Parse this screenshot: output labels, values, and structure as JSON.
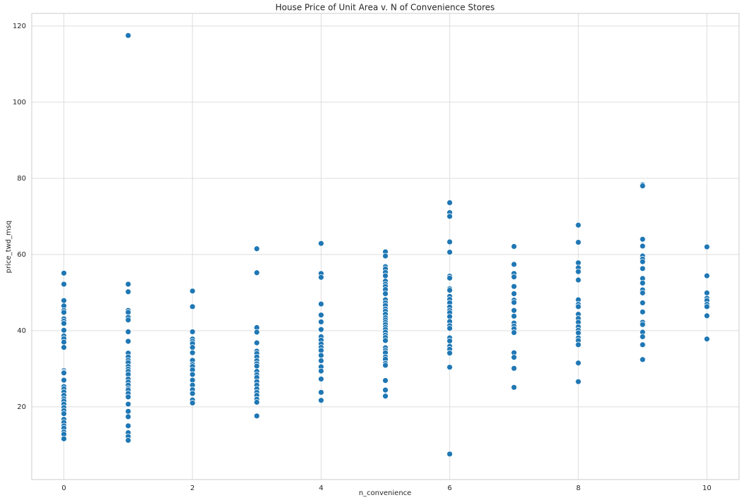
{
  "chart_data": {
    "type": "scatter",
    "title": "House Price of Unit Area v. N of Convenience Stores",
    "x_label": "n_convenience",
    "y_label": "price_twd_msq",
    "color": "#1f77b4",
    "grid": true,
    "xlim": [
      -0.5,
      10.5
    ],
    "ylim": [
      0.9,
      123.3
    ],
    "xticks": [
      0,
      2,
      4,
      6,
      8,
      10
    ],
    "yticks": [
      20,
      40,
      60,
      80,
      100,
      120
    ],
    "x": [
      0,
      0,
      0,
      0,
      0,
      0,
      0,
      0,
      0,
      0,
      0,
      0,
      0,
      0,
      0,
      0,
      0,
      0,
      0,
      0,
      0,
      0,
      0,
      0,
      0,
      0,
      0,
      0,
      0,
      0,
      0,
      0,
      0,
      0,
      0,
      1,
      1,
      1,
      1,
      1,
      1,
      1,
      1,
      1,
      1,
      1,
      1,
      1,
      1,
      1,
      1,
      1,
      1,
      1,
      1,
      1,
      1,
      1,
      1,
      1,
      1,
      1,
      1,
      1,
      1,
      1,
      2,
      2,
      2,
      2,
      2,
      2,
      2,
      2,
      2,
      2,
      2,
      2,
      2,
      2,
      2,
      2,
      2,
      2,
      2,
      3,
      3,
      3,
      3,
      3,
      3,
      3,
      3,
      3,
      3,
      3,
      3,
      3,
      3,
      3,
      3,
      3,
      3,
      3,
      3,
      3,
      3,
      4,
      4,
      4,
      4,
      4,
      4,
      4,
      4,
      4,
      4,
      4,
      4,
      4,
      4,
      4,
      4,
      4,
      4,
      4,
      5,
      5,
      5,
      5,
      5,
      5,
      5,
      5,
      5,
      5,
      5,
      5,
      5,
      5,
      5,
      5,
      5,
      5,
      5,
      5,
      5,
      5,
      5,
      5,
      5,
      5,
      5,
      5,
      5,
      5,
      5,
      5,
      5,
      5,
      5,
      5,
      5,
      6,
      6,
      6,
      6,
      6,
      6,
      6,
      6,
      6,
      6,
      6,
      6,
      6,
      6,
      6,
      6,
      6,
      6,
      6,
      6,
      6,
      6,
      6,
      6,
      6,
      6,
      7,
      7,
      7,
      7,
      7,
      7,
      7,
      7,
      7,
      7,
      7,
      7,
      7,
      7,
      7,
      7,
      7,
      7,
      8,
      8,
      8,
      8,
      8,
      8,
      8,
      8,
      8,
      8,
      8,
      8,
      8,
      8,
      8,
      8,
      8,
      8,
      8,
      8,
      9,
      9,
      9,
      9,
      9,
      9,
      9,
      9,
      9,
      9,
      9,
      9,
      9,
      9,
      9,
      9,
      9,
      9,
      9,
      9,
      10,
      10,
      10,
      10,
      10,
      10,
      10,
      10,
      10
    ],
    "values": [
      55.1,
      52.2,
      47.9,
      46.5,
      45.3,
      44.8,
      43.1,
      42.5,
      41.9,
      40.1,
      38.6,
      37.9,
      37.0,
      35.6,
      29.5,
      29.1,
      28.9,
      27.0,
      25.3,
      24.7,
      23.9,
      23.0,
      22.1,
      21.5,
      20.7,
      19.8,
      19.0,
      18.2,
      16.7,
      15.9,
      15.0,
      14.4,
      13.4,
      12.8,
      11.6,
      117.5,
      52.2,
      50.2,
      45.3,
      44.8,
      43.5,
      42.8,
      39.7,
      37.2,
      34.1,
      33.1,
      32.2,
      31.6,
      30.6,
      29.9,
      29.3,
      28.5,
      27.3,
      26.5,
      25.7,
      24.8,
      24.4,
      23.5,
      22.6,
      20.7,
      18.8,
      17.4,
      15.0,
      13.2,
      12.2,
      11.2,
      50.4,
      46.3,
      39.7,
      37.8,
      37.2,
      36.6,
      35.6,
      34.2,
      32.2,
      31.1,
      30.6,
      29.7,
      28.5,
      27.0,
      25.7,
      24.5,
      23.5,
      21.8,
      21.0,
      61.5,
      55.2,
      40.8,
      39.6,
      36.8,
      34.6,
      34.0,
      33.1,
      32.1,
      31.3,
      30.7,
      29.3,
      28.4,
      27.7,
      26.6,
      25.7,
      24.7,
      23.8,
      23.0,
      22.0,
      21.2,
      17.6,
      62.9,
      55.0,
      54.0,
      47.0,
      44.1,
      42.3,
      40.3,
      38.4,
      37.5,
      36.5,
      35.6,
      34.8,
      33.5,
      32.1,
      30.5,
      29.4,
      27.3,
      23.8,
      21.7,
      60.7,
      59.6,
      56.8,
      56.2,
      55.3,
      54.4,
      53.0,
      52.2,
      51.6,
      50.8,
      49.7,
      48.1,
      47.3,
      46.6,
      45.7,
      45.1,
      44.3,
      43.4,
      42.8,
      42.2,
      41.6,
      40.9,
      40.3,
      39.6,
      38.8,
      38.2,
      37.4,
      35.5,
      34.8,
      34.2,
      33.1,
      32.5,
      31.4,
      30.9,
      26.9,
      24.4,
      22.8,
      73.6,
      71.0,
      70.0,
      63.3,
      60.6,
      54.3,
      53.8,
      51.0,
      50.6,
      49.0,
      48.2,
      47.3,
      46.2,
      45.3,
      44.7,
      43.7,
      42.4,
      41.3,
      40.6,
      38.1,
      37.3,
      35.9,
      35.1,
      34.1,
      30.4,
      7.6,
      62.1,
      57.4,
      55.0,
      54.1,
      51.6,
      49.7,
      48.0,
      47.4,
      45.3,
      43.8,
      42.0,
      41.2,
      40.5,
      39.5,
      34.2,
      33.0,
      30.1,
      25.1,
      67.7,
      63.2,
      57.8,
      56.5,
      55.5,
      53.3,
      48.1,
      46.9,
      46.3,
      44.3,
      43.2,
      42.2,
      41.0,
      40.1,
      39.4,
      38.1,
      37.4,
      36.3,
      31.5,
      26.6,
      78.3,
      78.0,
      64.0,
      62.2,
      59.6,
      58.8,
      58.1,
      56.3,
      53.7,
      52.5,
      50.7,
      49.9,
      47.3,
      44.9,
      42.2,
      41.6,
      39.6,
      38.4,
      36.3,
      32.4,
      62.0,
      54.4,
      49.9,
      48.5,
      47.9,
      46.9,
      46.3,
      43.9,
      37.8
    ]
  }
}
